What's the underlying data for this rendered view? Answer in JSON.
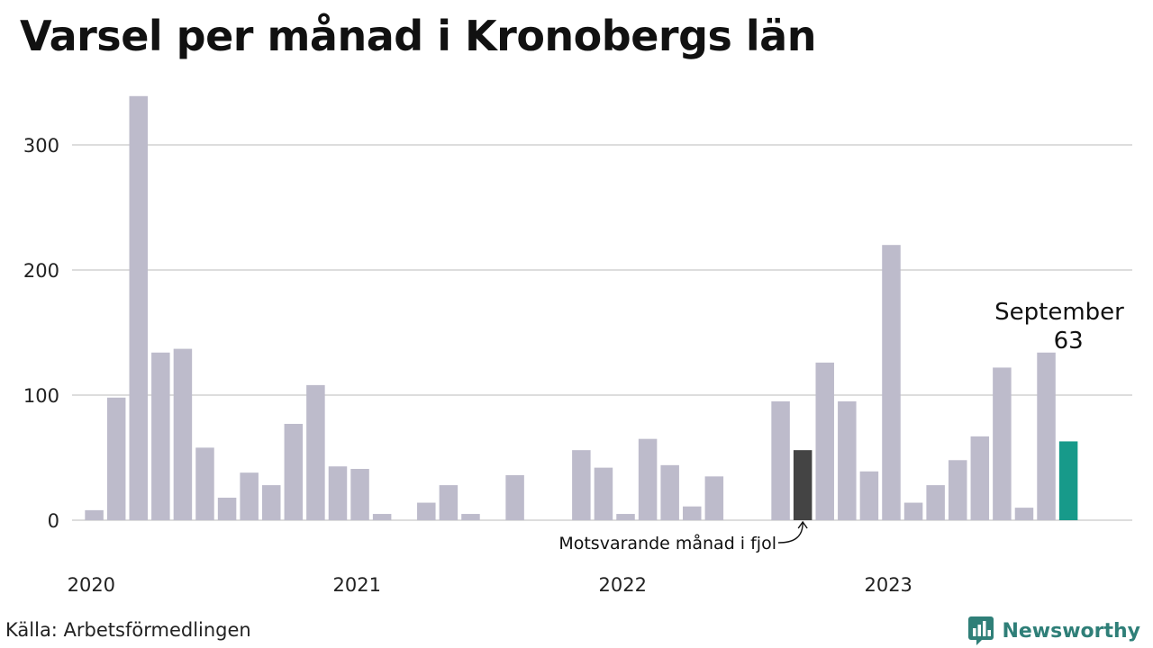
{
  "title": "Varsel per månad i Kronobergs län",
  "source": "Källa: Arbetsförmedlingen",
  "brand": {
    "name": "Newsworthy",
    "color": "#2f7f78",
    "icon": "newsworthy-logo-icon"
  },
  "chart_data": {
    "type": "bar",
    "title": "Varsel per månad i Kronobergs län",
    "ylim": [
      0,
      340
    ],
    "yticks": [
      0,
      100,
      200,
      300
    ],
    "grid": true,
    "x_year_labels": [
      "2020",
      "2021",
      "2022",
      "2023"
    ],
    "months": [
      "2020-01",
      "2020-02",
      "2020-03",
      "2020-04",
      "2020-05",
      "2020-06",
      "2020-07",
      "2020-08",
      "2020-09",
      "2020-10",
      "2020-11",
      "2020-12",
      "2021-01",
      "2021-02",
      "2021-03",
      "2021-04",
      "2021-05",
      "2021-06",
      "2021-07",
      "2021-08",
      "2021-09",
      "2021-10",
      "2021-11",
      "2021-12",
      "2022-01",
      "2022-02",
      "2022-03",
      "2022-04",
      "2022-05",
      "2022-06",
      "2022-07",
      "2022-08",
      "2022-09",
      "2022-10",
      "2022-11",
      "2022-12",
      "2023-01",
      "2023-02",
      "2023-03",
      "2023-04",
      "2023-05",
      "2023-06",
      "2023-07",
      "2023-08",
      "2023-09"
    ],
    "values": [
      8,
      98,
      339,
      134,
      137,
      58,
      18,
      38,
      28,
      77,
      108,
      43,
      41,
      5,
      0,
      14,
      28,
      5,
      0,
      36,
      0,
      0,
      56,
      42,
      5,
      65,
      44,
      11,
      35,
      0,
      0,
      95,
      56,
      126,
      95,
      39,
      220,
      14,
      28,
      48,
      67,
      122,
      10,
      134,
      63
    ],
    "colors": {
      "default": "#bdbbcb",
      "reference": "#444444",
      "highlight": "#179a8a",
      "grid": "#dddddd"
    },
    "highlight_index": 44,
    "reference_index": 32,
    "highlight_label": "September",
    "highlight_value_label": "63",
    "reference_label": "Motsvarande månad i fjol"
  }
}
